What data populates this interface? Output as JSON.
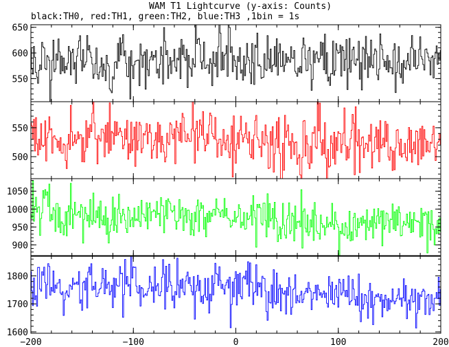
{
  "title": "WAM T1 Lightcurve (y-axis: Counts)",
  "subtitle": "black:TH0, red:TH1, green:TH2, blue:TH3 ,1bin = 1s",
  "chart_data": {
    "type": "line",
    "xlim": [
      -200,
      200
    ],
    "x_ticks": [
      -200,
      -100,
      0,
      100,
      200
    ],
    "x_tick_labels": [
      "−200",
      "−100",
      "0",
      "100",
      "200"
    ],
    "bin_seconds": 1,
    "grid": false,
    "panels": [
      {
        "series_name": "TH0",
        "color": "#000000",
        "ylim": [
          505,
          655
        ],
        "y_ticks": [
          550,
          600,
          650
        ],
        "y_tick_labels": [
          "550",
          "600",
          "650"
        ],
        "mean": 585,
        "noise_sd": 25,
        "segments": [
          [
            -200,
            200,
            0
          ]
        ]
      },
      {
        "series_name": "TH1",
        "color": "#ff0000",
        "ylim": [
          462,
          595
        ],
        "y_ticks": [
          500,
          550
        ],
        "y_tick_labels": [
          "500",
          "550"
        ],
        "mean": 530,
        "noise_sd": 24,
        "segments": [
          [
            -200,
            60,
            0
          ],
          [
            60,
            140,
            -10
          ],
          [
            140,
            200,
            -8
          ]
        ]
      },
      {
        "series_name": "TH2",
        "color": "#00ff00",
        "ylim": [
          870,
          1085
        ],
        "y_ticks": [
          900,
          950,
          1000,
          1050
        ],
        "y_tick_labels": [
          "900",
          "950",
          "1000",
          "1050"
        ],
        "mean": 975,
        "noise_sd": 28,
        "segments": [
          [
            -200,
            -180,
            35
          ],
          [
            -180,
            40,
            5
          ],
          [
            40,
            200,
            -20
          ]
        ]
      },
      {
        "series_name": "TH3",
        "color": "#0000ff",
        "ylim": [
          1595,
          1870
        ],
        "y_ticks": [
          1600,
          1700,
          1800
        ],
        "y_tick_labels": [
          "1600",
          "1700",
          "1800"
        ],
        "mean": 1760,
        "noise_sd": 40,
        "segments": [
          [
            -200,
            -180,
            20
          ],
          [
            -180,
            30,
            0
          ],
          [
            30,
            200,
            -35
          ]
        ]
      }
    ]
  }
}
